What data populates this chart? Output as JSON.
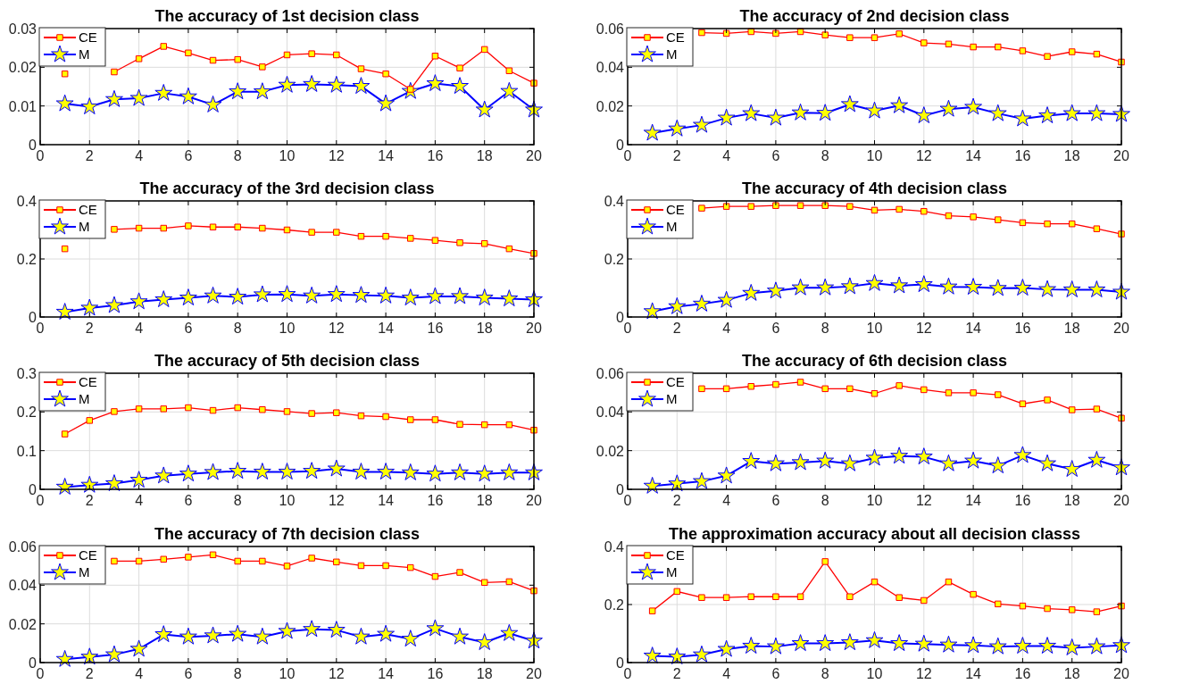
{
  "chart_data": [
    {
      "type": "line",
      "title": "The accuracy of 1st decision class",
      "x": [
        1,
        2,
        3,
        4,
        5,
        6,
        7,
        8,
        9,
        10,
        11,
        12,
        13,
        14,
        15,
        16,
        17,
        18,
        19,
        20
      ],
      "xlim": [
        0,
        20
      ],
      "xticks": [
        0,
        2,
        4,
        6,
        8,
        10,
        12,
        14,
        16,
        18,
        20
      ],
      "ylim": [
        0,
        0.03
      ],
      "yticks": [
        0,
        0.01,
        0.02,
        0.03
      ],
      "grid": true,
      "legend": "top left",
      "series": [
        {
          "name": "CE",
          "color": "#ff0000",
          "marker": "square",
          "values": [
            0.0183,
            null,
            0.0188,
            0.0222,
            0.0254,
            0.0237,
            0.0218,
            0.022,
            0.0201,
            0.0232,
            0.0235,
            0.0232,
            0.0196,
            0.0183,
            0.0143,
            0.0229,
            0.0198,
            0.0246,
            0.0191,
            0.0159
          ]
        },
        {
          "name": "M",
          "color": "#0000ff",
          "marker": "star",
          "values": [
            0.0106,
            0.0098,
            0.0117,
            0.012,
            0.0133,
            0.0124,
            0.0103,
            0.0137,
            0.0137,
            0.0154,
            0.0156,
            0.0154,
            0.0151,
            0.0106,
            0.0138,
            0.0158,
            0.0151,
            0.009,
            0.0138,
            0.009
          ]
        }
      ]
    },
    {
      "type": "line",
      "title": "The accuracy of 2nd decision class",
      "x": [
        1,
        2,
        3,
        4,
        5,
        6,
        7,
        8,
        9,
        10,
        11,
        12,
        13,
        14,
        15,
        16,
        17,
        18,
        19,
        20
      ],
      "xlim": [
        0,
        20
      ],
      "xticks": [
        0,
        2,
        4,
        6,
        8,
        10,
        12,
        14,
        16,
        18,
        20
      ],
      "ylim": [
        0,
        0.06
      ],
      "yticks": [
        0,
        0.02,
        0.04,
        0.06
      ],
      "grid": true,
      "legend": "top left",
      "series": [
        {
          "name": "CE",
          "color": "#ff0000",
          "marker": "square",
          "values": [
            null,
            null,
            0.0579,
            0.0575,
            0.0584,
            0.0575,
            0.0584,
            0.0567,
            0.0553,
            0.0553,
            0.0573,
            0.0526,
            0.052,
            0.0505,
            0.0505,
            0.0485,
            0.0456,
            0.048,
            0.0468,
            0.0427
          ]
        },
        {
          "name": "M",
          "color": "#0000ff",
          "marker": "star",
          "values": [
            0.006,
            0.0082,
            0.0101,
            0.0138,
            0.0161,
            0.0138,
            0.0165,
            0.0163,
            0.0208,
            0.0175,
            0.0202,
            0.015,
            0.0184,
            0.0194,
            0.0161,
            0.0134,
            0.015,
            0.0161,
            0.0161,
            0.0157
          ]
        }
      ]
    },
    {
      "type": "line",
      "title": "The accuracy of the 3rd decision class",
      "x": [
        1,
        2,
        3,
        4,
        5,
        6,
        7,
        8,
        9,
        10,
        11,
        12,
        13,
        14,
        15,
        16,
        17,
        18,
        19,
        20
      ],
      "xlim": [
        0,
        20
      ],
      "xticks": [
        0,
        2,
        4,
        6,
        8,
        10,
        12,
        14,
        16,
        18,
        20
      ],
      "ylim": [
        0,
        0.4
      ],
      "yticks": [
        0,
        0.2,
        0.4
      ],
      "grid": true,
      "legend": "top left",
      "series": [
        {
          "name": "CE",
          "color": "#ff0000",
          "marker": "square",
          "values": [
            0.235,
            null,
            0.302,
            0.306,
            0.306,
            0.314,
            0.31,
            0.31,
            0.306,
            0.3,
            0.292,
            0.292,
            0.278,
            0.278,
            0.271,
            0.264,
            0.256,
            0.253,
            0.235,
            0.219
          ]
        },
        {
          "name": "M",
          "color": "#0000ff",
          "marker": "star",
          "values": [
            0.017,
            0.031,
            0.04,
            0.053,
            0.06,
            0.066,
            0.073,
            0.069,
            0.077,
            0.078,
            0.073,
            0.078,
            0.075,
            0.073,
            0.066,
            0.071,
            0.071,
            0.066,
            0.063,
            0.06
          ]
        }
      ]
    },
    {
      "type": "line",
      "title": "The accuracy of 4th decision class",
      "x": [
        1,
        2,
        3,
        4,
        5,
        6,
        7,
        8,
        9,
        10,
        11,
        12,
        13,
        14,
        15,
        16,
        17,
        18,
        19,
        20
      ],
      "xlim": [
        0,
        20
      ],
      "xticks": [
        0,
        2,
        4,
        6,
        8,
        10,
        12,
        14,
        16,
        18,
        20
      ],
      "ylim": [
        0,
        0.4
      ],
      "yticks": [
        0,
        0.2,
        0.4
      ],
      "grid": true,
      "legend": "top left",
      "series": [
        {
          "name": "CE",
          "color": "#ff0000",
          "marker": "square",
          "values": [
            null,
            null,
            0.375,
            0.381,
            0.381,
            0.384,
            0.384,
            0.384,
            0.381,
            0.368,
            0.371,
            0.364,
            0.349,
            0.345,
            0.335,
            0.325,
            0.321,
            0.321,
            0.304,
            0.286
          ]
        },
        {
          "name": "M",
          "color": "#0000ff",
          "marker": "star",
          "values": [
            0.019,
            0.036,
            0.045,
            0.058,
            0.082,
            0.09,
            0.101,
            0.101,
            0.105,
            0.116,
            0.108,
            0.112,
            0.104,
            0.103,
            0.099,
            0.1,
            0.095,
            0.094,
            0.094,
            0.086
          ]
        }
      ]
    },
    {
      "type": "line",
      "title": "The accuracy of 5th decision class",
      "x": [
        1,
        2,
        3,
        4,
        5,
        6,
        7,
        8,
        9,
        10,
        11,
        12,
        13,
        14,
        15,
        16,
        17,
        18,
        19,
        20
      ],
      "xlim": [
        0,
        20
      ],
      "xticks": [
        0,
        2,
        4,
        6,
        8,
        10,
        12,
        14,
        16,
        18,
        20
      ],
      "ylim": [
        0,
        0.3
      ],
      "yticks": [
        0,
        0.1,
        0.2,
        0.3
      ],
      "grid": true,
      "legend": "top left",
      "series": [
        {
          "name": "CE",
          "color": "#ff0000",
          "marker": "square",
          "values": [
            0.143,
            0.178,
            0.201,
            0.208,
            0.208,
            0.211,
            0.204,
            0.211,
            0.206,
            0.201,
            0.196,
            0.198,
            0.19,
            0.188,
            0.18,
            0.18,
            0.168,
            0.167,
            0.167,
            0.153
          ]
        },
        {
          "name": "M",
          "color": "#0000ff",
          "marker": "star",
          "values": [
            0.006,
            0.011,
            0.015,
            0.024,
            0.035,
            0.04,
            0.044,
            0.047,
            0.045,
            0.045,
            0.047,
            0.053,
            0.045,
            0.045,
            0.043,
            0.04,
            0.043,
            0.04,
            0.043,
            0.043
          ]
        }
      ]
    },
    {
      "type": "line",
      "title": "The accuracy of 6th decision class",
      "x": [
        1,
        2,
        3,
        4,
        5,
        6,
        7,
        8,
        9,
        10,
        11,
        12,
        13,
        14,
        15,
        16,
        17,
        18,
        19,
        20
      ],
      "xlim": [
        0,
        20
      ],
      "xticks": [
        0,
        2,
        4,
        6,
        8,
        10,
        12,
        14,
        16,
        18,
        20
      ],
      "ylim": [
        0,
        0.06
      ],
      "yticks": [
        0,
        0.02,
        0.04,
        0.06
      ],
      "grid": true,
      "legend": "top left",
      "series": [
        {
          "name": "CE",
          "color": "#ff0000",
          "marker": "square",
          "values": [
            null,
            null,
            0.052,
            0.052,
            0.0532,
            0.0542,
            0.0554,
            0.052,
            0.052,
            0.0495,
            0.0536,
            0.0515,
            0.0499,
            0.0499,
            0.0489,
            0.0442,
            0.0462,
            0.0411,
            0.0415,
            0.0368
          ]
        },
        {
          "name": "M",
          "color": "#0000ff",
          "marker": "star",
          "values": [
            0.0017,
            0.0029,
            0.0041,
            0.007,
            0.0145,
            0.0133,
            0.0139,
            0.0147,
            0.0133,
            0.0162,
            0.0172,
            0.0168,
            0.0133,
            0.0147,
            0.0122,
            0.0176,
            0.0133,
            0.0104,
            0.0151,
            0.0112
          ]
        }
      ]
    },
    {
      "type": "line",
      "title": "The accuracy of 7th decision class",
      "x": [
        1,
        2,
        3,
        4,
        5,
        6,
        7,
        8,
        9,
        10,
        11,
        12,
        13,
        14,
        15,
        16,
        17,
        18,
        19,
        20
      ],
      "xlim": [
        0,
        20
      ],
      "xticks": [
        0,
        2,
        4,
        6,
        8,
        10,
        12,
        14,
        16,
        18,
        20
      ],
      "ylim": [
        0,
        0.06
      ],
      "yticks": [
        0,
        0.02,
        0.04,
        0.06
      ],
      "grid": true,
      "legend": "top left",
      "series": [
        {
          "name": "CE",
          "color": "#ff0000",
          "marker": "square",
          "values": [
            null,
            null,
            0.0524,
            0.0524,
            0.0534,
            0.0545,
            0.0557,
            0.0524,
            0.0524,
            0.0499,
            0.054,
            0.052,
            0.0501,
            0.0501,
            0.0491,
            0.0445,
            0.0466,
            0.0414,
            0.0418,
            0.0371
          ]
        },
        {
          "name": "M",
          "color": "#0000ff",
          "marker": "star",
          "values": [
            0.0017,
            0.0029,
            0.0041,
            0.007,
            0.0145,
            0.0133,
            0.0139,
            0.0147,
            0.0133,
            0.0162,
            0.0172,
            0.0168,
            0.0133,
            0.0147,
            0.0122,
            0.0176,
            0.0133,
            0.0104,
            0.0151,
            0.0112
          ]
        }
      ]
    },
    {
      "type": "line",
      "title": "The approximation accuracy about all decision classs",
      "x": [
        1,
        2,
        3,
        4,
        5,
        6,
        7,
        8,
        9,
        10,
        11,
        12,
        13,
        14,
        15,
        16,
        17,
        18,
        19,
        20
      ],
      "xlim": [
        0,
        20
      ],
      "xticks": [
        0,
        2,
        4,
        6,
        8,
        10,
        12,
        14,
        16,
        18,
        20
      ],
      "ylim": [
        0,
        0.4
      ],
      "yticks": [
        0,
        0.2,
        0.4
      ],
      "grid": true,
      "legend": "top left",
      "series": [
        {
          "name": "CE",
          "color": "#ff0000",
          "marker": "square",
          "values": [
            0.178,
            0.245,
            0.224,
            0.224,
            0.227,
            0.227,
            0.227,
            0.348,
            0.227,
            0.278,
            0.224,
            0.214,
            0.278,
            0.235,
            0.202,
            0.195,
            0.186,
            0.182,
            0.175,
            0.195
          ]
        },
        {
          "name": "M",
          "color": "#0000ff",
          "marker": "star",
          "values": [
            0.023,
            0.02,
            0.027,
            0.046,
            0.057,
            0.055,
            0.066,
            0.066,
            0.069,
            0.076,
            0.066,
            0.064,
            0.061,
            0.059,
            0.055,
            0.057,
            0.057,
            0.051,
            0.055,
            0.059
          ]
        }
      ]
    }
  ]
}
